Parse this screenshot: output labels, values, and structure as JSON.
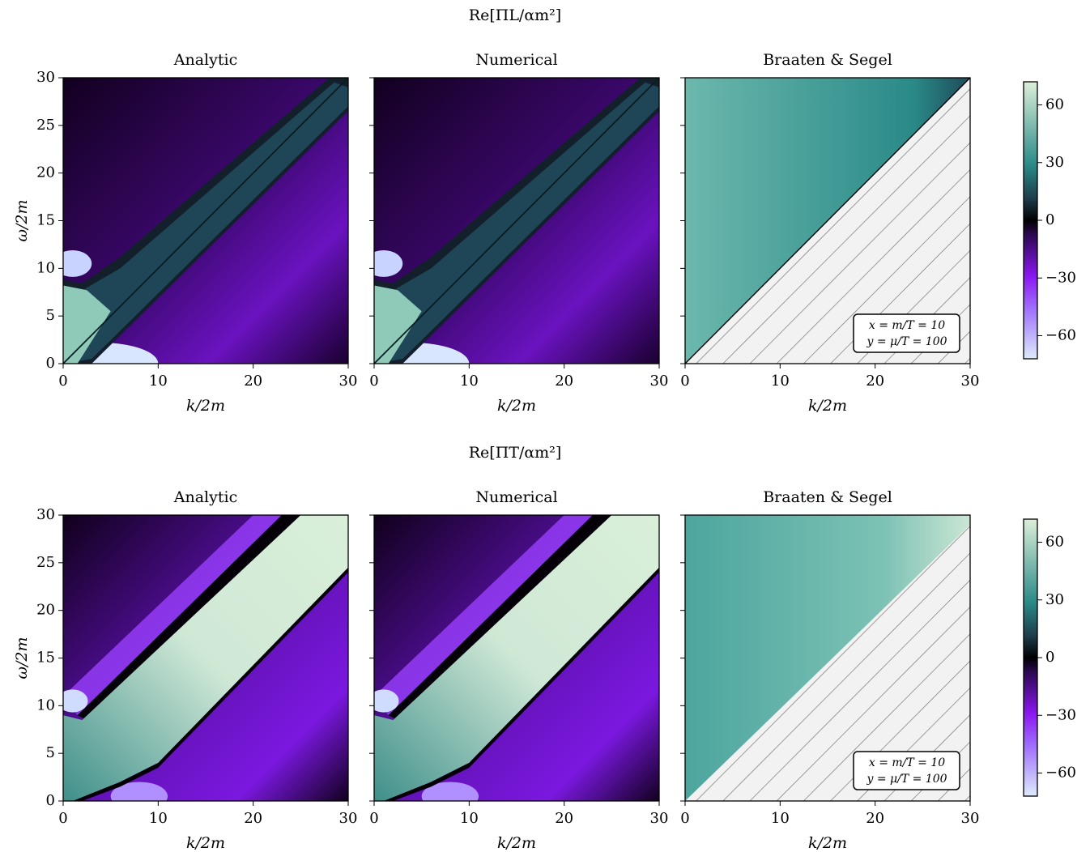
{
  "figure_titles": [
    "Re[ΠL/αm²]",
    "Re[ΠT/αm²]"
  ],
  "chart_data": [
    {
      "type": "heatmap",
      "title": "Analytic",
      "xlabel": "k/2m",
      "ylabel": "ω/2m",
      "xlim": [
        0,
        30
      ],
      "ylim": [
        0,
        30
      ],
      "xticks": [
        0,
        10,
        20,
        30
      ],
      "yticks": [
        0,
        5,
        10,
        15,
        20,
        25,
        30
      ]
    },
    {
      "type": "heatmap",
      "title": "Numerical",
      "xlabel": "k/2m",
      "xlim": [
        0,
        30
      ],
      "ylim": [
        0,
        30
      ],
      "xticks": [
        0,
        10,
        20,
        30
      ],
      "yticks": [
        0,
        5,
        10,
        15,
        20,
        25,
        30
      ]
    },
    {
      "type": "heatmap",
      "title": "Braaten & Segel",
      "xlabel": "k/2m",
      "xlim": [
        0,
        30
      ],
      "ylim": [
        0,
        30
      ],
      "xticks": [
        0,
        10,
        20,
        30
      ],
      "yticks": [
        0,
        5,
        10,
        15,
        20,
        25,
        30
      ],
      "annotation": [
        "x = m/T = 10",
        "y = μ/T = 100"
      ]
    },
    {
      "type": "heatmap",
      "title": "Analytic",
      "xlabel": "k/2m",
      "ylabel": "ω/2m",
      "xlim": [
        0,
        30
      ],
      "ylim": [
        0,
        30
      ],
      "xticks": [
        0,
        10,
        20,
        30
      ],
      "yticks": [
        0,
        5,
        10,
        15,
        20,
        25,
        30
      ]
    },
    {
      "type": "heatmap",
      "title": "Numerical",
      "xlabel": "k/2m",
      "xlim": [
        0,
        30
      ],
      "ylim": [
        0,
        30
      ],
      "xticks": [
        0,
        10,
        20,
        30
      ],
      "yticks": [
        0,
        5,
        10,
        15,
        20,
        25,
        30
      ]
    },
    {
      "type": "heatmap",
      "title": "Braaten & Segel",
      "xlabel": "k/2m",
      "xlim": [
        0,
        30
      ],
      "ylim": [
        0,
        30
      ],
      "xticks": [
        0,
        10,
        20,
        30
      ],
      "yticks": [
        0,
        5,
        10,
        15,
        20,
        25,
        30
      ],
      "annotation": [
        "x = m/T = 10",
        "y = μ/T = 100"
      ]
    }
  ],
  "colorbars": [
    {
      "lim": [
        -72,
        72
      ],
      "ticks": [
        {
          "value": -60,
          "label": "−60"
        },
        {
          "value": -30,
          "label": "−30"
        },
        0,
        30,
        60
      ]
    },
    {
      "lim": [
        -72,
        72
      ],
      "ticks": [
        {
          "value": -60,
          "label": "−60"
        },
        {
          "value": -30,
          "label": "−30"
        },
        0,
        30,
        60
      ]
    }
  ]
}
